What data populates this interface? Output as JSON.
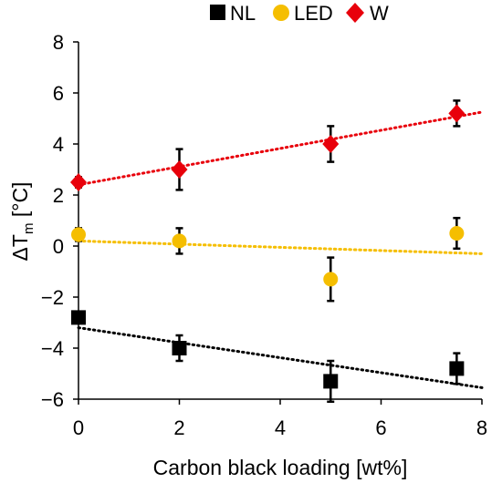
{
  "chart_data": {
    "type": "scatter",
    "xlabel": "Carbon black loading [wt%]",
    "ylabel": {
      "main": "ΔT",
      "subscript": "m",
      "unit": " [°C]"
    },
    "xlim": [
      0,
      8
    ],
    "ylim": [
      -6,
      8
    ],
    "x_ticks": [
      "0",
      "2",
      "4",
      "6",
      "8"
    ],
    "y_ticks": [
      "−6",
      "−4",
      "−2",
      "0",
      "2",
      "4",
      "6",
      "8"
    ],
    "grid": false,
    "legend_position": "top",
    "series": [
      {
        "name": "NL",
        "marker": "square",
        "color": "#000000",
        "x": [
          0,
          2,
          5,
          7.5
        ],
        "y": [
          -2.8,
          -4.0,
          -5.3,
          -4.8
        ],
        "error": [
          0.2,
          0.5,
          0.8,
          0.6
        ],
        "trendline": [
          [
            0,
            -3.2
          ],
          [
            8,
            -5.55
          ]
        ]
      },
      {
        "name": "LED",
        "marker": "circle",
        "color": "#F5BE00",
        "x": [
          0,
          2,
          5,
          7.5
        ],
        "y": [
          0.45,
          0.2,
          -1.3,
          0.5
        ],
        "error": [
          0.25,
          0.5,
          0.85,
          0.6
        ],
        "trendline": [
          [
            0,
            0.2
          ],
          [
            8,
            -0.3
          ]
        ]
      },
      {
        "name": "W",
        "marker": "diamond",
        "color": "#E8000B",
        "x": [
          0,
          2,
          5,
          7.5
        ],
        "y": [
          2.5,
          3.0,
          4.0,
          5.2
        ],
        "error": [
          0.2,
          0.8,
          0.7,
          0.5
        ],
        "trendline": [
          [
            0,
            2.4
          ],
          [
            8,
            5.25
          ]
        ]
      }
    ]
  }
}
